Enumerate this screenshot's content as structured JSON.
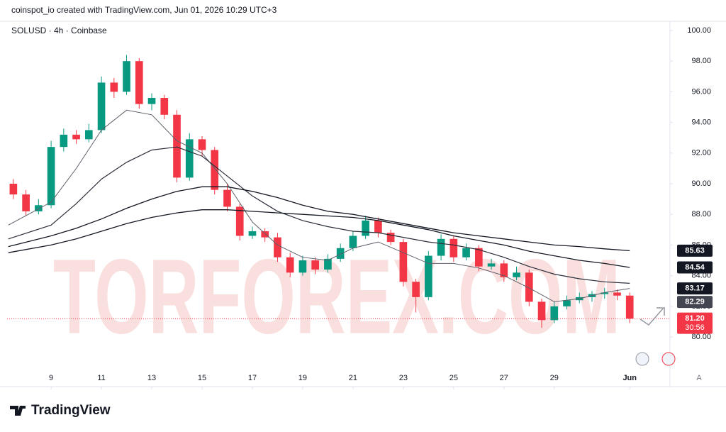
{
  "header": {
    "credit": "coinspot_io created with TradingView.com, Jun 01, 2026 10:29 UTC+3",
    "brand": "TradingView",
    "scale_button": "A"
  },
  "watermark": "TORFOREX.COM",
  "chart_data": {
    "type": "candlestick",
    "title": "SOLUSD · 4h · Coinbase",
    "up_color": "#089981",
    "down_color": "#f23645",
    "x": [
      7.5,
      8,
      8.5,
      9,
      9.5,
      10,
      10.5,
      11,
      11.5,
      12,
      12.5,
      13,
      13.5,
      14,
      14.5,
      15,
      15.5,
      16,
      16.5,
      17,
      17.5,
      18,
      18.5,
      19,
      19.5,
      20,
      20.5,
      21,
      21.5,
      22,
      22.5,
      23,
      23.5,
      24,
      24.5,
      25,
      25.5,
      26,
      26.5,
      27,
      27.5,
      28,
      28.5,
      29,
      29.5,
      30,
      30.5,
      31,
      31.5,
      32
    ],
    "open": [
      90.0,
      89.3,
      88.2,
      88.6,
      92.4,
      93.2,
      92.9,
      93.5,
      96.6,
      96.0,
      98.0,
      95.2,
      95.6,
      94.5,
      90.4,
      92.9,
      92.2,
      89.6,
      88.5,
      86.6,
      86.9,
      86.5,
      85.2,
      84.2,
      85.0,
      84.4,
      85.1,
      85.8,
      86.6,
      87.6,
      86.8,
      86.2,
      83.6,
      82.6,
      85.3,
      86.4,
      85.2,
      85.8,
      84.6,
      84.8,
      83.9,
      84.2,
      82.3,
      81.1,
      82.0,
      82.4,
      82.6,
      82.8,
      82.9,
      82.7
    ],
    "high": [
      90.3,
      89.6,
      89.0,
      92.8,
      93.6,
      93.5,
      93.9,
      97.0,
      96.9,
      98.4,
      98.2,
      95.9,
      95.8,
      94.8,
      93.3,
      93.1,
      92.4,
      90.0,
      88.7,
      87.2,
      87.1,
      86.8,
      85.5,
      85.3,
      85.2,
      85.4,
      86.1,
      86.9,
      87.9,
      87.8,
      87.0,
      86.4,
      83.8,
      85.6,
      86.7,
      86.6,
      86.1,
      86.0,
      85.1,
      85.0,
      84.6,
      84.4,
      82.5,
      82.3,
      82.7,
      82.9,
      83.0,
      83.2,
      83.1,
      82.9
    ],
    "low": [
      89.0,
      87.9,
      88.0,
      88.4,
      92.1,
      92.6,
      92.7,
      93.3,
      95.6,
      95.8,
      94.9,
      94.8,
      94.2,
      90.1,
      90.2,
      91.8,
      89.3,
      88.2,
      86.3,
      86.4,
      86.2,
      84.9,
      83.9,
      84.0,
      84.1,
      84.2,
      84.9,
      85.6,
      86.4,
      86.5,
      86.0,
      83.3,
      81.6,
      82.4,
      85.0,
      84.9,
      85.0,
      84.3,
      84.4,
      83.6,
      83.7,
      82.0,
      80.6,
      80.9,
      81.8,
      82.2,
      82.3,
      82.5,
      82.4,
      80.9
    ],
    "close": [
      89.3,
      88.2,
      88.6,
      92.4,
      93.2,
      92.9,
      93.5,
      96.6,
      96.0,
      98.0,
      95.2,
      95.6,
      94.5,
      90.4,
      92.9,
      92.2,
      89.6,
      88.5,
      86.6,
      86.9,
      86.5,
      85.2,
      84.2,
      85.0,
      84.4,
      85.1,
      85.8,
      86.6,
      87.6,
      86.8,
      86.2,
      83.6,
      82.6,
      85.3,
      86.4,
      85.2,
      85.8,
      84.6,
      84.8,
      83.9,
      84.2,
      82.3,
      81.1,
      82.0,
      82.4,
      82.6,
      82.8,
      82.9,
      82.7,
      81.2
    ],
    "lines": [
      {
        "color": "#5d606b",
        "width": 1,
        "x": [
          7.3,
          9,
          10,
          11,
          12,
          13,
          14,
          15,
          16,
          17,
          18,
          19,
          20,
          21,
          22,
          23,
          24,
          25,
          26,
          27,
          28,
          29,
          30,
          31,
          32
        ],
        "values": [
          87.3,
          88.8,
          91.0,
          93.5,
          94.8,
          94.5,
          92.8,
          92.0,
          90.0,
          87.5,
          86.0,
          85.2,
          85.0,
          85.8,
          86.2,
          85.5,
          84.8,
          84.8,
          84.5,
          84.0,
          83.2,
          82.3,
          82.5,
          82.9,
          83.17
        ]
      },
      {
        "color": "#2a2e39",
        "width": 1.2,
        "x": [
          7.3,
          9,
          10,
          11,
          12,
          13,
          14,
          15,
          16,
          17,
          18,
          19,
          20,
          21,
          22,
          23,
          24,
          25,
          26,
          27,
          28,
          29,
          30,
          31,
          32
        ],
        "values": [
          86.4,
          87.3,
          88.7,
          90.3,
          91.4,
          92.2,
          92.4,
          91.8,
          90.5,
          89.2,
          88.2,
          87.6,
          87.2,
          86.9,
          86.8,
          86.5,
          86.2,
          86.0,
          85.7,
          85.2,
          84.6,
          84.1,
          83.8,
          83.6,
          83.5
        ]
      },
      {
        "color": "#131722",
        "width": 1.3,
        "x": [
          7.3,
          9,
          10,
          11,
          12,
          13,
          14,
          15,
          16,
          17,
          18,
          19,
          20,
          21,
          22,
          23,
          24,
          25,
          26,
          27,
          28,
          29,
          30,
          31,
          32
        ],
        "values": [
          85.9,
          86.6,
          87.1,
          87.7,
          88.4,
          89.0,
          89.5,
          89.8,
          89.8,
          89.5,
          89.1,
          88.6,
          88.2,
          88.0,
          87.7,
          87.4,
          87.1,
          86.8,
          86.6,
          86.4,
          86.2,
          86.0,
          85.9,
          85.75,
          85.63
        ]
      },
      {
        "color": "#131722",
        "width": 1.3,
        "x": [
          7.3,
          9,
          10,
          11,
          12,
          13,
          14,
          15,
          16,
          17,
          18,
          19,
          20,
          21,
          22,
          23,
          24,
          25,
          26,
          27,
          28,
          29,
          30,
          31,
          32
        ],
        "values": [
          85.5,
          86.0,
          86.4,
          86.9,
          87.4,
          87.8,
          88.1,
          88.3,
          88.3,
          88.2,
          88.1,
          88.0,
          87.9,
          87.8,
          87.6,
          87.3,
          87.0,
          86.6,
          86.3,
          86.0,
          85.6,
          85.3,
          85.0,
          84.8,
          84.54
        ]
      }
    ],
    "price_tags": [
      {
        "value": 85.63,
        "color": "#131722"
      },
      {
        "value": 84.54,
        "color": "#131722"
      },
      {
        "value": 83.17,
        "color": "#131722"
      },
      {
        "value": 82.29,
        "color": "#434651"
      },
      {
        "value": 81.2,
        "label": "81.20",
        "countdown": "30:56",
        "color": "#f23645",
        "last": true
      }
    ],
    "xlim": [
      7.25,
      33.6
    ],
    "ylim": [
      77.92,
      100.6
    ],
    "xticks": [
      9,
      11,
      13,
      15,
      17,
      19,
      21,
      23,
      25,
      27,
      29,
      {
        "value": 32,
        "label": "Jun"
      }
    ],
    "yticks": [
      {
        "value": 80,
        "label": "80.00"
      },
      {
        "value": 82,
        "label": "82.00"
      },
      {
        "value": 84,
        "label": "84.00"
      },
      {
        "value": 86,
        "label": "86.00"
      },
      {
        "value": 88,
        "label": "88.00"
      },
      {
        "value": 90,
        "label": "90.00"
      },
      {
        "value": 92,
        "label": "92.00"
      },
      {
        "value": 94,
        "label": "94.00"
      },
      {
        "value": 96,
        "label": "96.00"
      },
      {
        "value": 98,
        "label": "98.00"
      },
      {
        "value": 100,
        "label": "100.00"
      }
    ],
    "grid": false
  }
}
